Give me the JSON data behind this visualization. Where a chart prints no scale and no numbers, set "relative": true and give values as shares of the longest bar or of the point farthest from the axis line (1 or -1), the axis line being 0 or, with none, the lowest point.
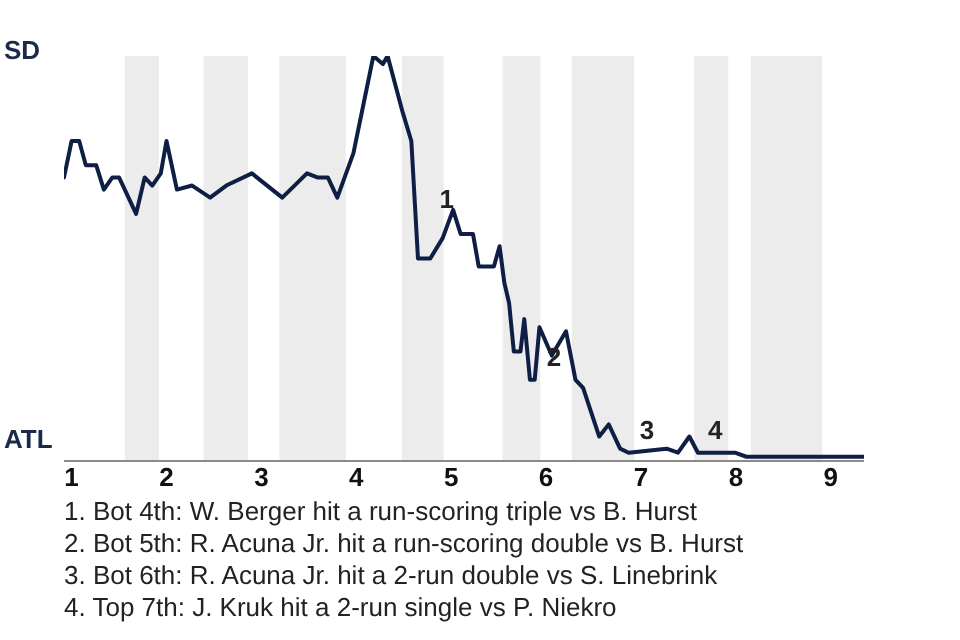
{
  "chart_data": {
    "type": "line",
    "relative": true,
    "x": [
      0.92,
      1,
      1.08,
      1.15,
      1.26,
      1.34,
      1.43,
      1.5,
      1.68,
      1.77,
      1.85,
      1.94,
      2,
      2.11,
      2.27,
      2.46,
      2.63,
      2.9,
      3.22,
      3.48,
      3.59,
      3.7,
      3.8,
      3.97,
      4.18,
      4.28,
      4.33,
      4.49,
      4.58,
      4.65,
      4.78,
      4.91,
      5.02,
      5.1,
      5.23,
      5.29,
      5.45,
      5.51,
      5.56,
      5.61,
      5.66,
      5.73,
      5.77,
      5.83,
      5.88,
      5.93,
      6.06,
      6.21,
      6.31,
      6.39,
      6.56,
      6.66,
      6.78,
      6.87,
      7.27,
      7.39,
      7.51,
      7.6,
      7.99,
      8.11,
      9.35
    ],
    "series": [
      {
        "color": "#0e1e45",
        "values": [
          0.7,
          0.79,
          0.79,
          0.73,
          0.73,
          0.67,
          0.7,
          0.7,
          0.61,
          0.7,
          0.68,
          0.71,
          0.79,
          0.67,
          0.68,
          0.65,
          0.68,
          0.71,
          0.65,
          0.71,
          0.7,
          0.7,
          0.65,
          0.76,
          1,
          0.98,
          1,
          0.86,
          0.79,
          0.5,
          0.5,
          0.55,
          0.62,
          0.56,
          0.56,
          0.48,
          0.48,
          0.53,
          0.44,
          0.39,
          0.27,
          0.27,
          0.35,
          0.2,
          0.2,
          0.33,
          0.26,
          0.32,
          0.2,
          0.18,
          0.06,
          0.09,
          0.03,
          0.02,
          0.03,
          0.02,
          0.06,
          0.02,
          0.02,
          0.01,
          0.01
        ]
      }
    ],
    "xlim": [
      0.92,
      9.35
    ],
    "xticks": [
      1,
      2,
      3,
      4,
      5,
      6,
      7,
      8,
      9
    ],
    "bands": [
      {
        "axis": "x",
        "from": 1.56,
        "to": 1.92,
        "color": "#ececec"
      },
      {
        "axis": "x",
        "from": 2.39,
        "to": 2.86,
        "color": "#ececec"
      },
      {
        "axis": "x",
        "from": 3.19,
        "to": 3.89,
        "color": "#ececec"
      },
      {
        "axis": "x",
        "from": 4.48,
        "to": 4.92,
        "color": "#ececec"
      },
      {
        "axis": "x",
        "from": 5.54,
        "to": 5.94,
        "color": "#ececec"
      },
      {
        "axis": "x",
        "from": 6.27,
        "to": 6.93,
        "color": "#ececec"
      },
      {
        "axis": "x",
        "from": 7.56,
        "to": 7.92,
        "color": "#ececec"
      },
      {
        "axis": "x",
        "from": 8.16,
        "to": 8.91,
        "color": "#ececec"
      }
    ],
    "annotations": [
      "SD",
      "ATL",
      {
        "text": "1",
        "x": 4.75,
        "y": 0.59
      },
      {
        "text": "2",
        "x": 5.88,
        "y": 0.2
      },
      {
        "text": "3",
        "x": 6.86,
        "y": 0.02
      },
      {
        "text": "4",
        "x": 7.58,
        "y": 0.02
      },
      "1. Bot 4th: W. Berger hit a run-scoring triple vs B. Hurst",
      "2. Bot 5th: R. Acuna Jr. hit a run-scoring double vs B. Hurst",
      "3. Bot 6th: R. Acuna Jr. hit a 2-run double vs S. Linebrink",
      "4. Top 7th: J. Kruk hit a 2-run single vs P. Niekro"
    ],
    "marker": "none",
    "line_style": "solid"
  }
}
